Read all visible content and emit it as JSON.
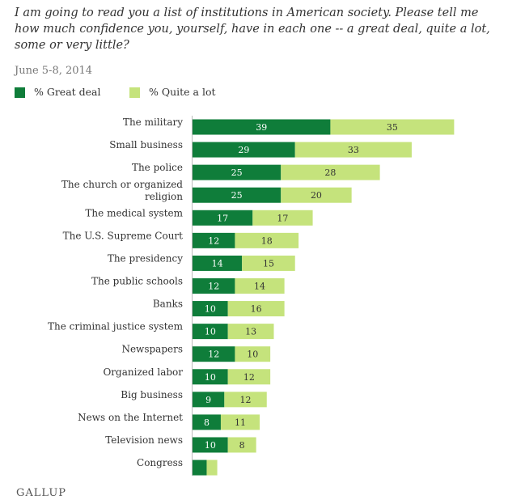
{
  "chart_data": {
    "type": "bar",
    "stacked": true,
    "orientation": "horizontal",
    "title": "I am going to read you a list of institutions in American society. Please tell me how much confidence you, yourself, have in each one -- a great deal, quite a lot, some or very little?",
    "subtitle": "June 5-8, 2014",
    "legend_placement": "top-left",
    "categories": [
      "The military",
      "Small business",
      "The police",
      "The church or organized religion",
      "The medical system",
      "The U.S. Supreme Court",
      "The presidency",
      "The public schools",
      "Banks",
      "The criminal justice system",
      "Newspapers",
      "Organized labor",
      "Big business",
      "News on the Internet",
      "Television news",
      "Congress"
    ],
    "series": [
      {
        "name": "% Great deal",
        "color": "#0f7d3a",
        "values": [
          39,
          29,
          25,
          25,
          17,
          12,
          14,
          12,
          10,
          10,
          12,
          10,
          9,
          8,
          10,
          4
        ]
      },
      {
        "name": "% Quite a lot",
        "color": "#c5e37c",
        "values": [
          35,
          33,
          28,
          20,
          17,
          18,
          15,
          14,
          16,
          13,
          10,
          12,
          12,
          11,
          8,
          3
        ]
      }
    ],
    "data_labels": {
      "great_deal": [
        "39",
        "29",
        "25",
        "25",
        "17",
        "12",
        "14",
        "12",
        "10",
        "10",
        "12",
        "10",
        "9",
        "8",
        "10",
        ""
      ],
      "quite_a_lot": [
        "35",
        "33",
        "28",
        "20",
        "17",
        "18",
        "15",
        "14",
        "16",
        "13",
        "10",
        "12",
        "12",
        "11",
        "8",
        ""
      ]
    },
    "xlim": [
      0,
      80
    ],
    "grid": false
  },
  "branding": {
    "logo_text": "GALLUP"
  }
}
